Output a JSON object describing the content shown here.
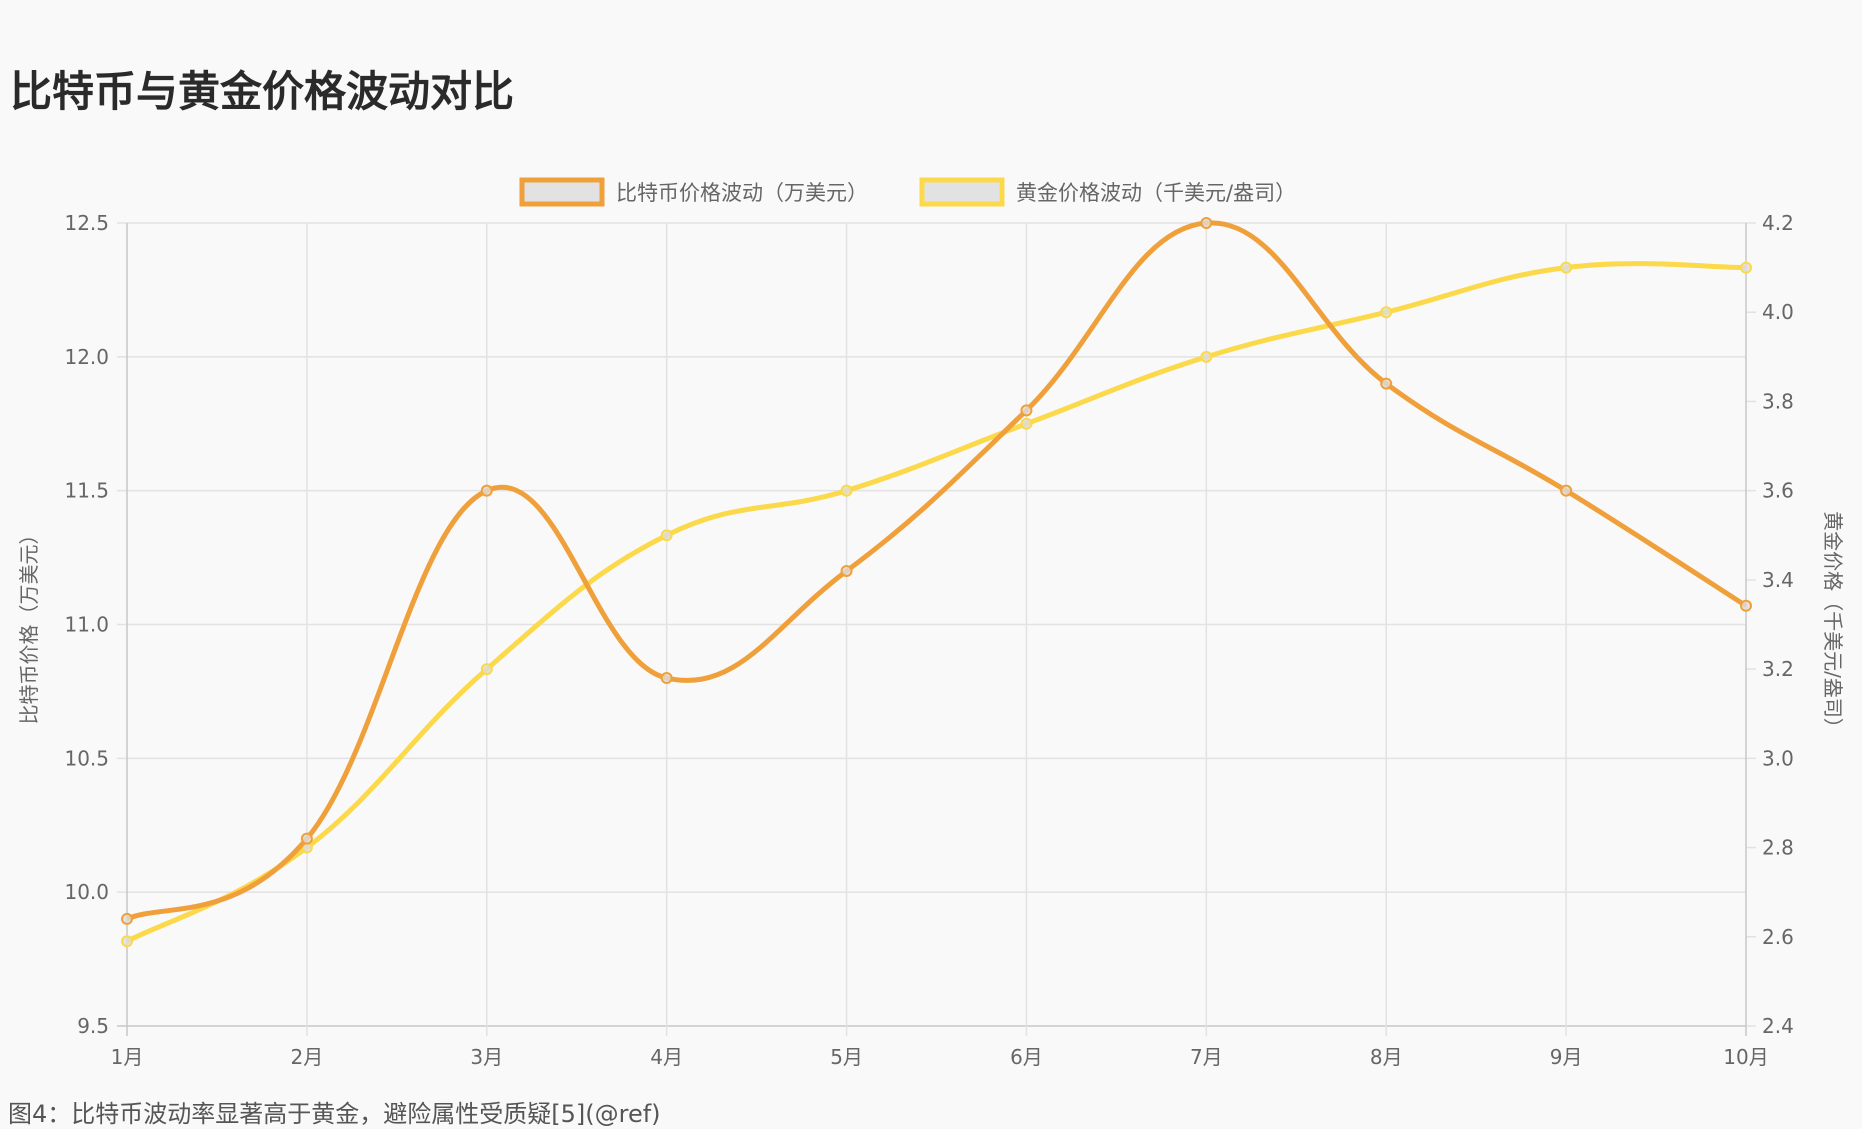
{
  "title": "比特币与黄金价格波动对比",
  "caption": "图4：比特币波动率显著高于黄金，避险属性受质疑[5](@ref)",
  "chart_data": {
    "type": "line",
    "categories": [
      "1月",
      "2月",
      "3月",
      "4月",
      "5月",
      "6月",
      "7月",
      "8月",
      "9月",
      "10月"
    ],
    "series": [
      {
        "name": "比特币价格波动（万美元）",
        "axis": "left",
        "color": "#f0a03a",
        "values": [
          9.9,
          10.2,
          11.5,
          10.8,
          11.2,
          11.8,
          12.5,
          11.9,
          11.5,
          11.07
        ]
      },
      {
        "name": "黄金价格波动（千美元/盎司）",
        "axis": "right",
        "color": "#fbd94a",
        "values": [
          2.59,
          2.8,
          3.2,
          3.5,
          3.6,
          3.75,
          3.9,
          4.0,
          4.1,
          4.1
        ]
      }
    ],
    "y_left": {
      "label": "比特币价格（万美元）",
      "range": [
        9.5,
        12.5
      ],
      "ticks": [
        "9.5",
        "10.0",
        "10.5",
        "11.0",
        "11.5",
        "12.0",
        "12.5"
      ]
    },
    "y_right": {
      "label": "黄金价格（千美元/盎司）",
      "range": [
        2.4,
        4.2
      ],
      "ticks": [
        "2.4",
        "2.6",
        "2.8",
        "3.0",
        "3.2",
        "3.4",
        "3.6",
        "3.8",
        "4.0",
        "4.2"
      ]
    },
    "grid": true,
    "legend": "top-center",
    "smooth": true
  }
}
